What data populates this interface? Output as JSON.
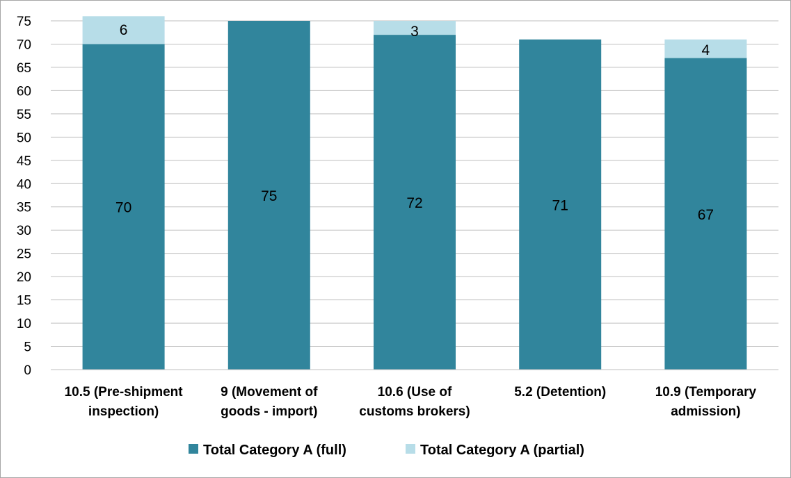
{
  "chart_data": {
    "type": "bar",
    "stacked": true,
    "categories": [
      [
        "10.5 (Pre-shipment",
        "inspection)"
      ],
      [
        "9 (Movement of",
        "goods - import)"
      ],
      [
        "10.6 (Use of",
        "customs brokers)"
      ],
      [
        "5.2 (Detention)"
      ],
      [
        "10.9 (Temporary",
        "admission)"
      ]
    ],
    "series": [
      {
        "name": "Total Category A (full)",
        "color": "#31859c",
        "values": [
          70,
          75,
          72,
          71,
          67
        ]
      },
      {
        "name": "Total Category A (partial)",
        "color": "#b7dde8",
        "values": [
          6,
          0,
          3,
          0,
          4
        ]
      }
    ],
    "title": "",
    "xlabel": "",
    "ylabel": "",
    "ylim": [
      0,
      75
    ],
    "yticks": [
      0,
      5,
      10,
      15,
      20,
      25,
      30,
      35,
      40,
      45,
      50,
      55,
      60,
      65,
      70,
      75
    ],
    "grid": true,
    "legend_position": "bottom"
  }
}
